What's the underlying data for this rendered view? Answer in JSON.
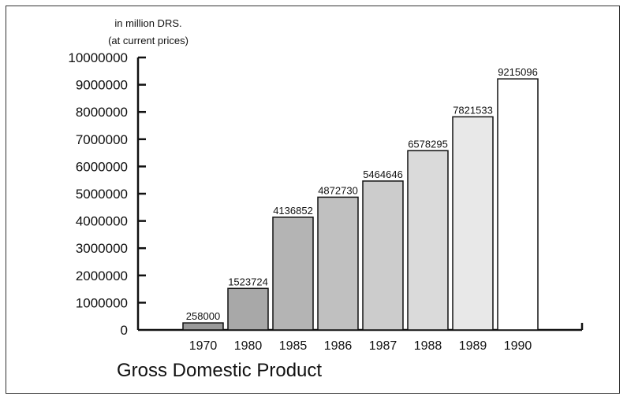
{
  "chart_data": {
    "type": "bar",
    "title": "Gross Domestic Product",
    "unit_line1": "in million DRS.",
    "unit_line2": "(at current prices)",
    "categories": [
      "1970",
      "1980",
      "1985",
      "1986",
      "1987",
      "1988",
      "1989",
      "1990"
    ],
    "values": [
      258000,
      1523724,
      4136852,
      4872730,
      5464646,
      6578295,
      7821533,
      9215096
    ],
    "value_labels": [
      "258000",
      "1523724",
      "4136852",
      "4872730",
      "5464646",
      "6578295",
      "7821533",
      "9215096"
    ],
    "y_ticks": [
      "0",
      "1000000",
      "2000000",
      "3000000",
      "4000000",
      "5000000",
      "6000000",
      "7000000",
      "8000000",
      "9000000",
      "10000000"
    ],
    "ylim": [
      0,
      10000000
    ],
    "grid": false,
    "bar_colors": [
      "#9a9a9a",
      "#a8a8a8",
      "#b4b4b4",
      "#c0c0c0",
      "#cccccc",
      "#dadada",
      "#e8e8e8",
      "#ffffff"
    ]
  }
}
